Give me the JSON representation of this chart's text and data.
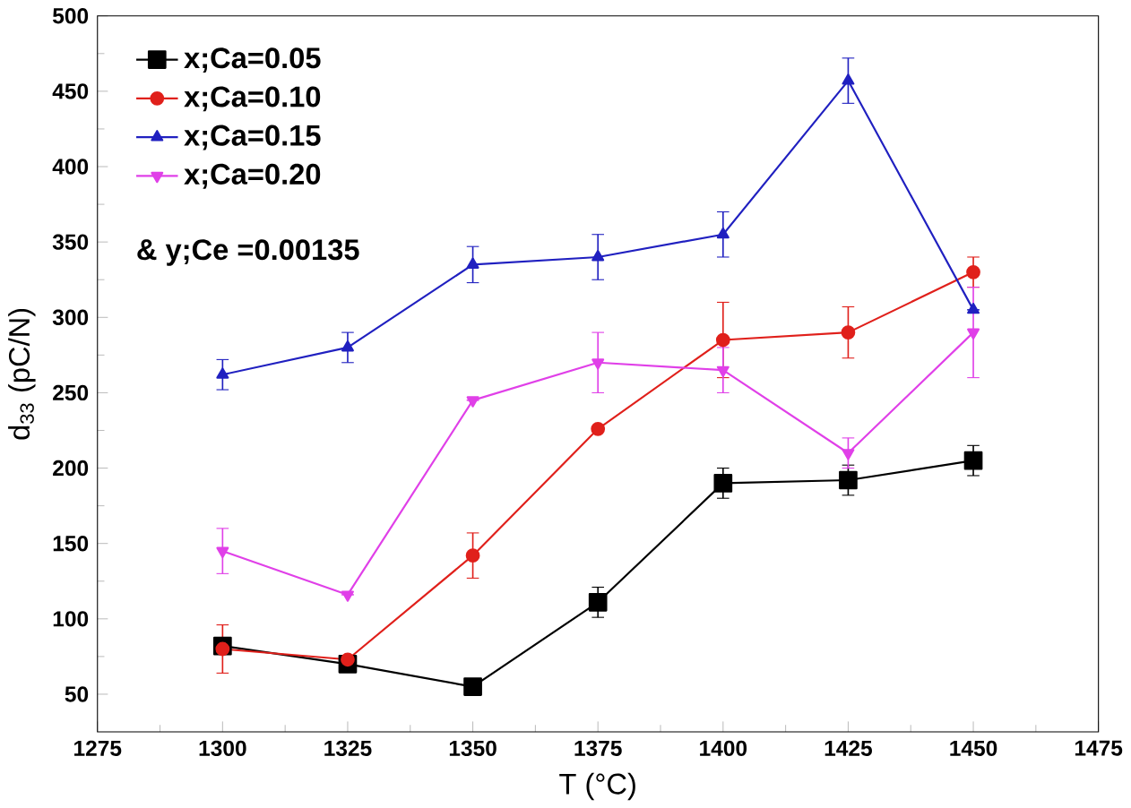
{
  "chart_data": {
    "type": "line",
    "xlabel": "T (°C)",
    "ylabel": "d$_{33}$ (pC/N)",
    "x": [
      1300,
      1325,
      1350,
      1375,
      1400,
      1425,
      1450
    ],
    "xlim": [
      1275,
      1475
    ],
    "xticks": [
      1275,
      1300,
      1325,
      1350,
      1375,
      1400,
      1425,
      1450,
      1475
    ],
    "ylim": [
      25,
      500
    ],
    "yticks": [
      50,
      100,
      150,
      200,
      250,
      300,
      350,
      400,
      450,
      500
    ],
    "grid": false,
    "legend": "top left",
    "line_style": "solid",
    "annotations": [
      "& y;Ce =0.00135"
    ],
    "series": [
      {
        "name": "x;Ca=0.05",
        "color": "#000000",
        "marker": "square",
        "values": [
          82,
          70,
          55,
          111,
          190,
          192,
          205
        ],
        "errors": [
          null,
          null,
          null,
          10,
          10,
          10,
          10
        ]
      },
      {
        "name": "x;Ca=0.10",
        "color": "#e0201b",
        "marker": "circle",
        "values": [
          80,
          73,
          142,
          226,
          285,
          290,
          330
        ],
        "errors": [
          16,
          null,
          15,
          null,
          25,
          17,
          10
        ]
      },
      {
        "name": "x;Ca=0.15",
        "color": "#2020c0",
        "marker": "triangle",
        "values": [
          262,
          280,
          335,
          340,
          355,
          457,
          305
        ],
        "errors": [
          10,
          10,
          12,
          15,
          15,
          15,
          null
        ]
      },
      {
        "name": "x;Ca=0.20",
        "color": "#e040e8",
        "marker": "triangle down",
        "values": [
          145,
          116,
          245,
          270,
          265,
          210,
          290
        ],
        "errors": [
          15,
          null,
          null,
          20,
          15,
          10,
          30
        ]
      }
    ]
  }
}
